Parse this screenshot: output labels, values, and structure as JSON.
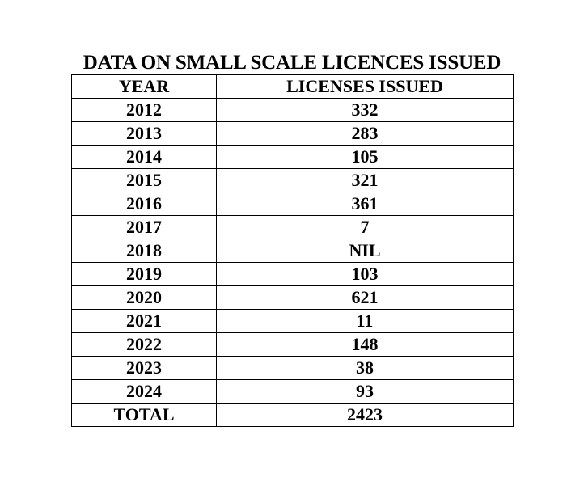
{
  "title": "DATA ON SMALL SCALE LICENCES ISSUED",
  "table": {
    "headers": [
      "YEAR",
      "LICENSES ISSUED"
    ],
    "rows": [
      {
        "year": "2012",
        "licenses": "332"
      },
      {
        "year": "2013",
        "licenses": "283"
      },
      {
        "year": "2014",
        "licenses": "105"
      },
      {
        "year": "2015",
        "licenses": "321"
      },
      {
        "year": "2016",
        "licenses": "361"
      },
      {
        "year": "2017",
        "licenses": "7"
      },
      {
        "year": "2018",
        "licenses": "NIL"
      },
      {
        "year": "2019",
        "licenses": "103"
      },
      {
        "year": "2020",
        "licenses": "621"
      },
      {
        "year": "2021",
        "licenses": "11"
      },
      {
        "year": "2022",
        "licenses": "148"
      },
      {
        "year": "2023",
        "licenses": "38"
      },
      {
        "year": "2024",
        "licenses": "93"
      }
    ],
    "total": {
      "label": "TOTAL",
      "value": "2423"
    }
  }
}
